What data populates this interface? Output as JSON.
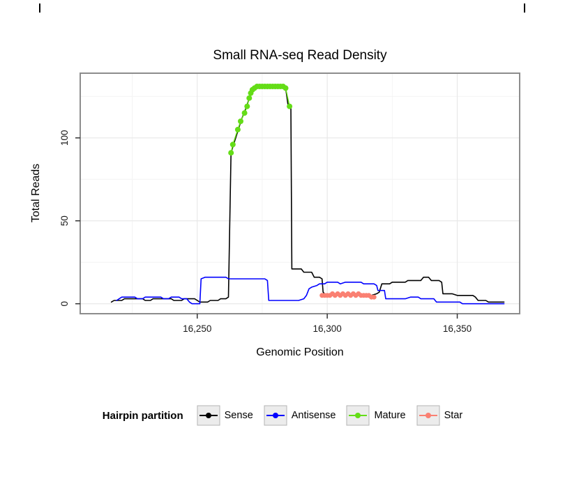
{
  "chart_data": {
    "type": "line",
    "title": "Small RNA-seq Read Density",
    "xlabel": "Genomic Position",
    "ylabel": "Total Reads",
    "xlim": [
      16205,
      16374
    ],
    "ylim": [
      -6,
      139
    ],
    "grid": true,
    "legend_position": "bottom",
    "legend_title": "Hairpin partition",
    "panel_border_color": "#8c8c8c",
    "grid_major_color": "#e8e8e8",
    "grid_minor_color": "#f4f4f4",
    "x_ticks": [
      {
        "value": 16250,
        "label": "16,250"
      },
      {
        "value": 16300,
        "label": "16,300"
      },
      {
        "value": 16350,
        "label": "16,350"
      }
    ],
    "y_ticks": [
      {
        "value": 0,
        "label": "0"
      },
      {
        "value": 50,
        "label": "50"
      },
      {
        "value": 100,
        "label": "100"
      }
    ],
    "x_minor": [
      16225,
      16275,
      16325
    ],
    "y_minor": [
      25,
      75,
      125
    ],
    "series": [
      {
        "name": "Sense",
        "kind": "line",
        "color": "#000000",
        "points": [
          [
            16217,
            1
          ],
          [
            16218,
            2
          ],
          [
            16221,
            2
          ],
          [
            16222,
            3
          ],
          [
            16229,
            3
          ],
          [
            16230,
            2
          ],
          [
            16232,
            2
          ],
          [
            16233,
            3
          ],
          [
            16240,
            3
          ],
          [
            16241,
            2
          ],
          [
            16244,
            2
          ],
          [
            16245,
            3
          ],
          [
            16249,
            3
          ],
          [
            16250,
            2
          ],
          [
            16251,
            1
          ],
          [
            16254,
            1
          ],
          [
            16255,
            2
          ],
          [
            16258,
            2
          ],
          [
            16259,
            3
          ],
          [
            16261,
            3
          ],
          [
            16262,
            4
          ],
          [
            16263,
            91
          ],
          [
            16264,
            96
          ],
          [
            16265,
            101
          ],
          [
            16266,
            106
          ],
          [
            16267,
            111
          ],
          [
            16268,
            115
          ],
          [
            16269,
            119
          ],
          [
            16270,
            124
          ],
          [
            16271,
            129
          ],
          [
            16272,
            130
          ],
          [
            16273,
            131
          ],
          [
            16283,
            131
          ],
          [
            16284,
            130
          ],
          [
            16285,
            119
          ],
          [
            16286,
            119
          ],
          [
            16286.4,
            21
          ],
          [
            16290,
            21
          ],
          [
            16291,
            19
          ],
          [
            16294,
            19
          ],
          [
            16295,
            16
          ],
          [
            16297,
            16
          ],
          [
            16298,
            15
          ],
          [
            16298.4,
            7
          ],
          [
            16299,
            6
          ],
          [
            16300,
            5
          ],
          [
            16304,
            5
          ],
          [
            16305,
            6
          ],
          [
            16307,
            5
          ],
          [
            16312,
            5
          ],
          [
            16317,
            5
          ],
          [
            16319,
            6
          ],
          [
            16320,
            7
          ],
          [
            16321,
            12
          ],
          [
            16324,
            12
          ],
          [
            16325,
            13
          ],
          [
            16330,
            13
          ],
          [
            16331,
            14
          ],
          [
            16336,
            14
          ],
          [
            16337,
            16
          ],
          [
            16339,
            16
          ],
          [
            16340,
            14
          ],
          [
            16343,
            14
          ],
          [
            16344,
            13
          ],
          [
            16344.5,
            6
          ],
          [
            16348,
            6
          ],
          [
            16350,
            5
          ],
          [
            16356,
            5
          ],
          [
            16357,
            4
          ],
          [
            16358,
            2
          ],
          [
            16361,
            2
          ],
          [
            16362,
            1
          ],
          [
            16368,
            1
          ]
        ]
      },
      {
        "name": "Antisense",
        "kind": "line",
        "color": "#0000FF",
        "points": [
          [
            16219,
            2
          ],
          [
            16220,
            3
          ],
          [
            16221,
            4
          ],
          [
            16226,
            4
          ],
          [
            16227,
            3
          ],
          [
            16229,
            3
          ],
          [
            16230,
            4
          ],
          [
            16236,
            4
          ],
          [
            16237,
            3
          ],
          [
            16239,
            3
          ],
          [
            16240,
            4
          ],
          [
            16243,
            4
          ],
          [
            16244,
            3
          ],
          [
            16246,
            3
          ],
          [
            16247,
            1
          ],
          [
            16248,
            0
          ],
          [
            16251,
            0
          ],
          [
            16251.5,
            15
          ],
          [
            16253,
            16
          ],
          [
            16261,
            16
          ],
          [
            16262,
            15
          ],
          [
            16276,
            15
          ],
          [
            16277,
            14
          ],
          [
            16277.5,
            2
          ],
          [
            16289,
            2
          ],
          [
            16291,
            3
          ],
          [
            16292,
            5
          ],
          [
            16293,
            9
          ],
          [
            16294,
            10
          ],
          [
            16296,
            11
          ],
          [
            16297,
            12
          ],
          [
            16299,
            12
          ],
          [
            16300,
            13
          ],
          [
            16304,
            13
          ],
          [
            16305,
            12
          ],
          [
            16307,
            13
          ],
          [
            16313,
            13
          ],
          [
            16314,
            12
          ],
          [
            16318,
            12
          ],
          [
            16319,
            11
          ],
          [
            16319.5,
            8
          ],
          [
            16322,
            8
          ],
          [
            16322.5,
            3
          ],
          [
            16330,
            3
          ],
          [
            16332,
            4
          ],
          [
            16335,
            4
          ],
          [
            16336,
            3
          ],
          [
            16341,
            3
          ],
          [
            16342,
            1
          ],
          [
            16346,
            1
          ],
          [
            16351,
            1
          ],
          [
            16352,
            0
          ],
          [
            16368,
            0
          ]
        ]
      },
      {
        "name": "Mature",
        "kind": "scatter",
        "color": "#64DD17",
        "point_radius": 4,
        "points": [
          [
            16263,
            91
          ],
          [
            16263.7,
            96
          ],
          [
            16265.6,
            105
          ],
          [
            16266.7,
            110
          ],
          [
            16268.2,
            115
          ],
          [
            16269.2,
            119
          ],
          [
            16270,
            124
          ],
          [
            16270.6,
            127
          ],
          [
            16271.2,
            129
          ],
          [
            16272,
            130
          ],
          [
            16273,
            131
          ],
          [
            16274,
            131
          ],
          [
            16275,
            131
          ],
          [
            16276,
            131
          ],
          [
            16277,
            131
          ],
          [
            16278,
            131
          ],
          [
            16279,
            131
          ],
          [
            16280,
            131
          ],
          [
            16281,
            131
          ],
          [
            16282,
            131
          ],
          [
            16283,
            131
          ],
          [
            16284,
            130
          ],
          [
            16285.5,
            119
          ]
        ]
      },
      {
        "name": "Star",
        "kind": "scatter",
        "color": "#FA8072",
        "point_radius": 3.5,
        "points": [
          [
            16298,
            5
          ],
          [
            16299,
            5
          ],
          [
            16300,
            5
          ],
          [
            16301,
            5
          ],
          [
            16302,
            6
          ],
          [
            16303,
            5
          ],
          [
            16304,
            6
          ],
          [
            16305,
            5
          ],
          [
            16306,
            6
          ],
          [
            16307,
            5
          ],
          [
            16308,
            6
          ],
          [
            16309,
            5
          ],
          [
            16310,
            6
          ],
          [
            16311,
            5
          ],
          [
            16312,
            6
          ],
          [
            16313,
            5
          ],
          [
            16314,
            5
          ],
          [
            16315,
            5
          ],
          [
            16316,
            5
          ],
          [
            16317,
            4
          ],
          [
            16318,
            4
          ]
        ]
      }
    ]
  }
}
